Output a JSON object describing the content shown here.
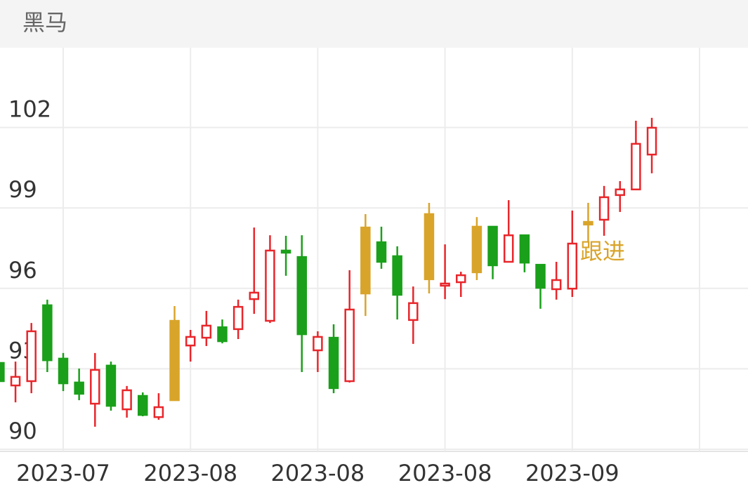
{
  "header": {
    "title": "黑马"
  },
  "chart_data": {
    "type": "candlestick",
    "categories": [
      null,
      null,
      null,
      null,
      "2023-07",
      null,
      null,
      null,
      null,
      null,
      null,
      null,
      "2023-08",
      null,
      null,
      null,
      null,
      null,
      null,
      null,
      "2023-08",
      null,
      null,
      null,
      null,
      null,
      null,
      null,
      "2023-08",
      null,
      null,
      null,
      null,
      null,
      null,
      null,
      "2023-09",
      null,
      null,
      null,
      null,
      null
    ],
    "open": [
      93.22,
      92.38,
      92.54,
      95.37,
      93.38,
      92.49,
      91.7,
      93.12,
      91.49,
      91.99,
      91.2,
      91.83,
      93.87,
      94.16,
      94.55,
      94.48,
      95.6,
      94.79,
      97.41,
      97.17,
      93.69,
      94.16,
      92.54,
      95.81,
      97.72,
      97.2,
      94.82,
      96.34,
      96.1,
      96.23,
      96.6,
      98.3,
      96.99,
      97.98,
      96.88,
      95.97,
      95.99,
      98.38,
      98.56,
      99.48,
      99.69,
      100.99
    ],
    "high": [
      93.22,
      93.27,
      94.71,
      95.58,
      93.59,
      93.01,
      93.59,
      93.27,
      92.36,
      92.12,
      92.09,
      95.34,
      94.45,
      95.16,
      94.84,
      95.58,
      98.27,
      97.98,
      97.96,
      97.98,
      94.4,
      94.66,
      96.68,
      98.77,
      98.3,
      97.57,
      96.07,
      99.19,
      97.64,
      96.62,
      98.66,
      98.3,
      99.29,
      97.98,
      96.88,
      96.99,
      98.9,
      99.19,
      99.82,
      100.0,
      102.25,
      102.36
    ],
    "low": [
      92.54,
      91.75,
      92.09,
      92.88,
      92.17,
      91.83,
      90.84,
      91.44,
      91.18,
      91.23,
      91.1,
      91.83,
      93.27,
      93.85,
      93.95,
      94.11,
      95.05,
      94.71,
      96.47,
      92.88,
      92.88,
      92.09,
      92.49,
      94.97,
      96.73,
      94.84,
      93.93,
      95.81,
      95.6,
      95.68,
      96.31,
      96.34,
      96.99,
      96.6,
      95.24,
      95.58,
      95.68,
      97.72,
      97.96,
      98.85,
      99.69,
      100.29
    ],
    "close": [
      92.54,
      92.7,
      94.4,
      93.32,
      92.46,
      92.07,
      92.96,
      91.62,
      92.2,
      91.28,
      91.57,
      94.79,
      94.19,
      94.61,
      94.03,
      95.31,
      95.84,
      97.41,
      97.36,
      94.29,
      94.19,
      92.28,
      95.21,
      98.27,
      96.99,
      95.76,
      95.45,
      98.77,
      96.18,
      96.49,
      98.3,
      96.86,
      97.98,
      96.96,
      96.02,
      96.31,
      97.67,
      98.48,
      99.4,
      99.69,
      101.39,
      101.99
    ],
    "candle_colors": [
      "#1aa01a",
      "#e8262b",
      "#e8262b",
      "#1aa01a",
      "#1aa01a",
      "#1aa01a",
      "#e8262b",
      "#1aa01a",
      "#e8262b",
      "#1aa01a",
      "#e8262b",
      "#d9a42a",
      "#e8262b",
      "#e8262b",
      "#1aa01a",
      "#e8262b",
      "#e8262b",
      "#e8262b",
      "#1aa01a",
      "#1aa01a",
      "#e8262b",
      "#1aa01a",
      "#e8262b",
      "#d9a42a",
      "#1aa01a",
      "#1aa01a",
      "#e8262b",
      "#d9a42a",
      "#e8262b",
      "#e8262b",
      "#d9a42a",
      "#1aa01a",
      "#e8262b",
      "#1aa01a",
      "#1aa01a",
      "#e8262b",
      "#e8262b",
      "#d9a42a",
      "#e8262b",
      "#e8262b",
      "#e8262b",
      "#e8262b"
    ],
    "hollow_color": "#e8262b",
    "annotation": "跟进",
    "annotation_color": "#d9a42a",
    "ylim": [
      90,
      105
    ],
    "yticks": [
      90,
      93,
      96,
      99,
      102
    ],
    "grid": true
  }
}
